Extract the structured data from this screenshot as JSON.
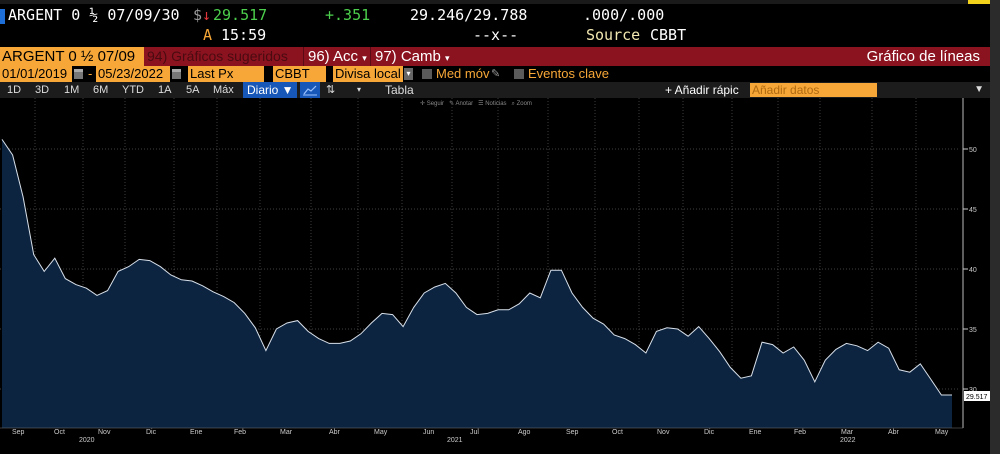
{
  "header": {
    "security": "ARGENT 0 ½ 07/09/30",
    "currency_symbol": "$",
    "direction_icon": "down-arrow",
    "last_price": "29.517",
    "change": "+.351",
    "bid_ask": "29.246/29.788",
    "bid_ask_size": ".000/.000",
    "time_prefix": "A",
    "time": "15:59",
    "cross": "--x--",
    "source_label": "Source",
    "source": "CBBT"
  },
  "menu_bar": {
    "security_short": "ARGENT 0 ½ 07/09",
    "suggested": "94) Gráficos sugeridos",
    "actions": "96) Acc",
    "change_menu": "97) Camb",
    "chart_type_title": "Gráfico de líneas"
  },
  "params": {
    "start_date": "01/01/2019",
    "dash": "-",
    "end_date": "05/23/2022",
    "field": "Last Px",
    "source": "CBBT",
    "currency": "Divisa local",
    "moving_avg": "Med móv",
    "key_events": "Eventos clave"
  },
  "toolbar": {
    "ranges": [
      "1D",
      "3D",
      "1M",
      "6M",
      "YTD",
      "1A",
      "5A",
      "Máx"
    ],
    "frequency": "Diario ▼",
    "table": "Tabla",
    "quick_add": "+ Añadir rápic",
    "add_data_placeholder": "Añadir datos",
    "chart_tools": [
      "Seguir",
      "Anotar",
      "Noticias",
      "Zoom"
    ]
  },
  "chart_data": {
    "type": "area",
    "title": "ARGENT 0 ½ 07/09/30 - Last Px (CBBT)",
    "xlabel": "",
    "ylabel": "",
    "ylim": [
      27,
      54
    ],
    "y_ticks": [
      30,
      35,
      40,
      45,
      50
    ],
    "grid": true,
    "last_value_label": "29.517",
    "x_month_labels": [
      "Sep",
      "Oct",
      "Nov",
      "Dic",
      "Ene",
      "Feb",
      "Mar",
      "Abr",
      "May",
      "Jun",
      "Jul",
      "Ago",
      "Sep",
      "Oct",
      "Nov",
      "Dic",
      "Ene",
      "Feb",
      "Mar",
      "Abr",
      "May"
    ],
    "x_year_labels": [
      "2020",
      "2021",
      "2022"
    ],
    "series": [
      {
        "name": "Last Px",
        "x": [
          "2020-09-01",
          "2020-09-08",
          "2020-09-15",
          "2020-09-22",
          "2020-09-29",
          "2020-10-06",
          "2020-10-13",
          "2020-10-20",
          "2020-10-27",
          "2020-11-03",
          "2020-11-10",
          "2020-11-17",
          "2020-11-24",
          "2020-12-01",
          "2020-12-08",
          "2020-12-15",
          "2020-12-22",
          "2020-12-29",
          "2021-01-05",
          "2021-01-12",
          "2021-01-19",
          "2021-01-26",
          "2021-02-02",
          "2021-02-09",
          "2021-02-16",
          "2021-02-23",
          "2021-03-02",
          "2021-03-09",
          "2021-03-16",
          "2021-03-23",
          "2021-03-30",
          "2021-04-06",
          "2021-04-13",
          "2021-04-20",
          "2021-04-27",
          "2021-05-04",
          "2021-05-11",
          "2021-05-18",
          "2021-05-25",
          "2021-06-01",
          "2021-06-08",
          "2021-06-15",
          "2021-06-22",
          "2021-06-29",
          "2021-07-06",
          "2021-07-13",
          "2021-07-20",
          "2021-07-27",
          "2021-08-03",
          "2021-08-10",
          "2021-08-17",
          "2021-08-24",
          "2021-08-31",
          "2021-09-07",
          "2021-09-14",
          "2021-09-21",
          "2021-09-28",
          "2021-10-05",
          "2021-10-12",
          "2021-10-19",
          "2021-10-26",
          "2021-11-02",
          "2021-11-09",
          "2021-11-16",
          "2021-11-23",
          "2021-11-30",
          "2021-12-07",
          "2021-12-14",
          "2021-12-21",
          "2021-12-28",
          "2022-01-04",
          "2022-01-11",
          "2022-01-18",
          "2022-01-25",
          "2022-02-01",
          "2022-02-08",
          "2022-02-15",
          "2022-02-22",
          "2022-03-01",
          "2022-03-08",
          "2022-03-15",
          "2022-03-22",
          "2022-03-29",
          "2022-04-05",
          "2022-04-12",
          "2022-04-19",
          "2022-04-26",
          "2022-05-03",
          "2022-05-10",
          "2022-05-17",
          "2022-05-23"
        ],
        "values": [
          50.8,
          49.5,
          46.0,
          41.2,
          39.8,
          40.9,
          39.2,
          38.7,
          38.4,
          37.8,
          38.2,
          39.8,
          40.2,
          40.8,
          40.7,
          40.2,
          39.5,
          39.1,
          39.0,
          38.6,
          38.1,
          37.7,
          37.2,
          36.3,
          35.1,
          33.2,
          35.0,
          35.5,
          35.7,
          34.8,
          34.2,
          33.8,
          33.8,
          34.0,
          34.6,
          35.5,
          36.3,
          36.2,
          35.2,
          36.8,
          38.0,
          38.5,
          38.8,
          38.0,
          36.8,
          36.2,
          36.3,
          36.6,
          36.6,
          37.1,
          38.0,
          37.6,
          39.9,
          39.9,
          38.0,
          36.8,
          35.9,
          35.4,
          34.5,
          34.2,
          33.7,
          33.0,
          34.8,
          35.1,
          35.0,
          34.4,
          35.2,
          34.2,
          33.1,
          31.8,
          30.9,
          31.1,
          33.9,
          33.7,
          33.0,
          33.5,
          32.4,
          30.6,
          32.4,
          33.3,
          33.8,
          33.6,
          33.2,
          33.9,
          33.4,
          31.6,
          31.4,
          32.1,
          30.8,
          29.5,
          29.5
        ]
      }
    ]
  }
}
